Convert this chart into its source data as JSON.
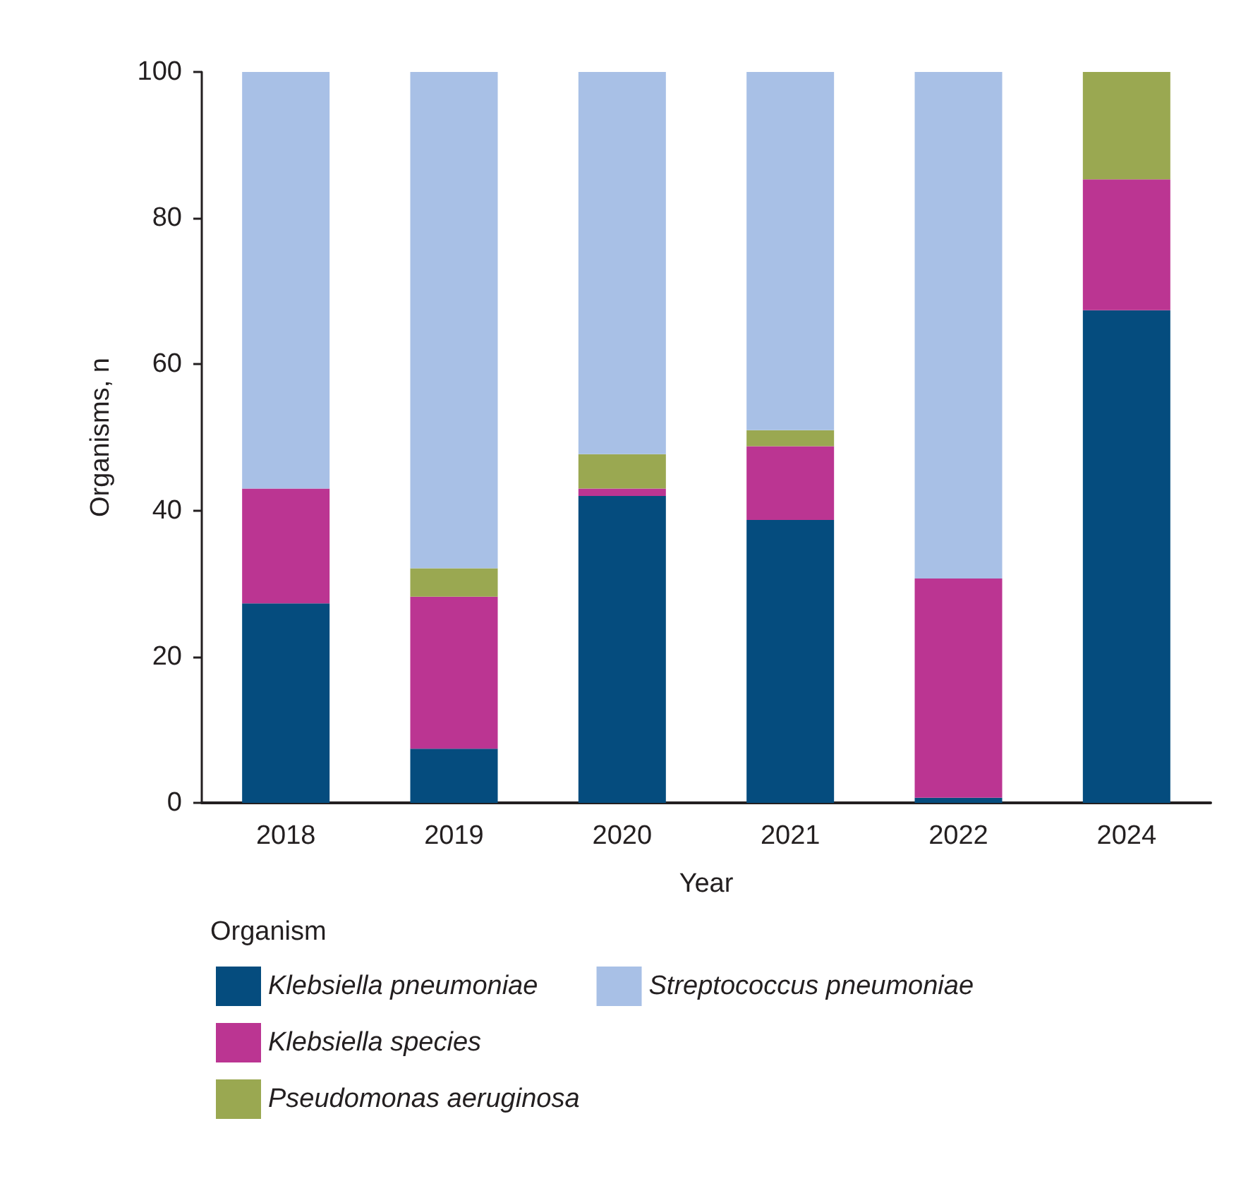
{
  "chart_data": {
    "type": "bar",
    "stacked": true,
    "xlabel": "Year",
    "ylabel": "Organisms, n",
    "legend_title": "Organism",
    "legend": "bottom",
    "grid": false,
    "categories": [
      "2018",
      "2019",
      "2020",
      "2021",
      "2022",
      "2024"
    ],
    "ylim": [
      0,
      100
    ],
    "yticks": [
      0,
      20,
      40,
      60,
      80,
      100
    ],
    "series": [
      {
        "name": "Klebsiella pneumoniae",
        "color": "#054c7e",
        "values": [
          27.3,
          7.4,
          42.0,
          38.7,
          0.7,
          67.4
        ]
      },
      {
        "name": "Klebsiella species",
        "color": "#bb3592",
        "values": [
          15.7,
          20.8,
          1.0,
          10.1,
          30.0,
          17.9
        ]
      },
      {
        "name": "Pseudomonas aeruginosa",
        "color": "#9aa851",
        "values": [
          0,
          3.9,
          4.7,
          2.2,
          0,
          14.7
        ]
      },
      {
        "name": "Streptococcus pneumoniae",
        "color": "#a8c0e6",
        "values": [
          57.0,
          67.9,
          52.3,
          49.0,
          69.3,
          0
        ]
      }
    ]
  }
}
